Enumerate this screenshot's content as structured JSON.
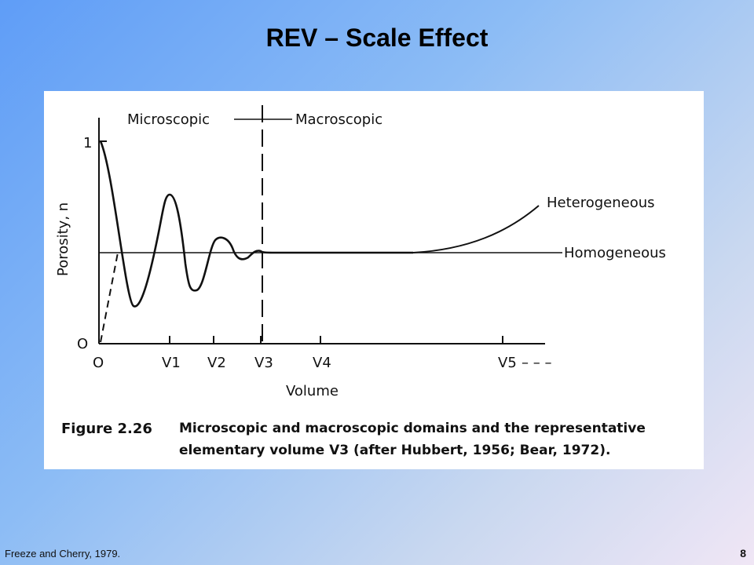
{
  "slide": {
    "title": "REV – Scale Effect",
    "source": "Freeze and Cherry, 1979.",
    "page_number": "8"
  },
  "figure": {
    "label_microscopic": "Microscopic",
    "label_macroscopic": "Macroscopic",
    "y_axis_label": "Porosity, n",
    "y_tick_top": "1",
    "y_tick_bottom": "O",
    "x_axis_label": "Volume",
    "x_ticks": [
      "O",
      "V1",
      "V2",
      "V3",
      "V4",
      "V5"
    ],
    "curve_heterogeneous": "Heterogeneous",
    "curve_homogeneous": "Homogeneous",
    "caption_number": "Figure 2.26",
    "caption_line1": "Microscopic and macroscopic domains and the representative",
    "caption_line2": "elementary volume V3 (after Hubbert, 1956; Bear, 1972)."
  }
}
